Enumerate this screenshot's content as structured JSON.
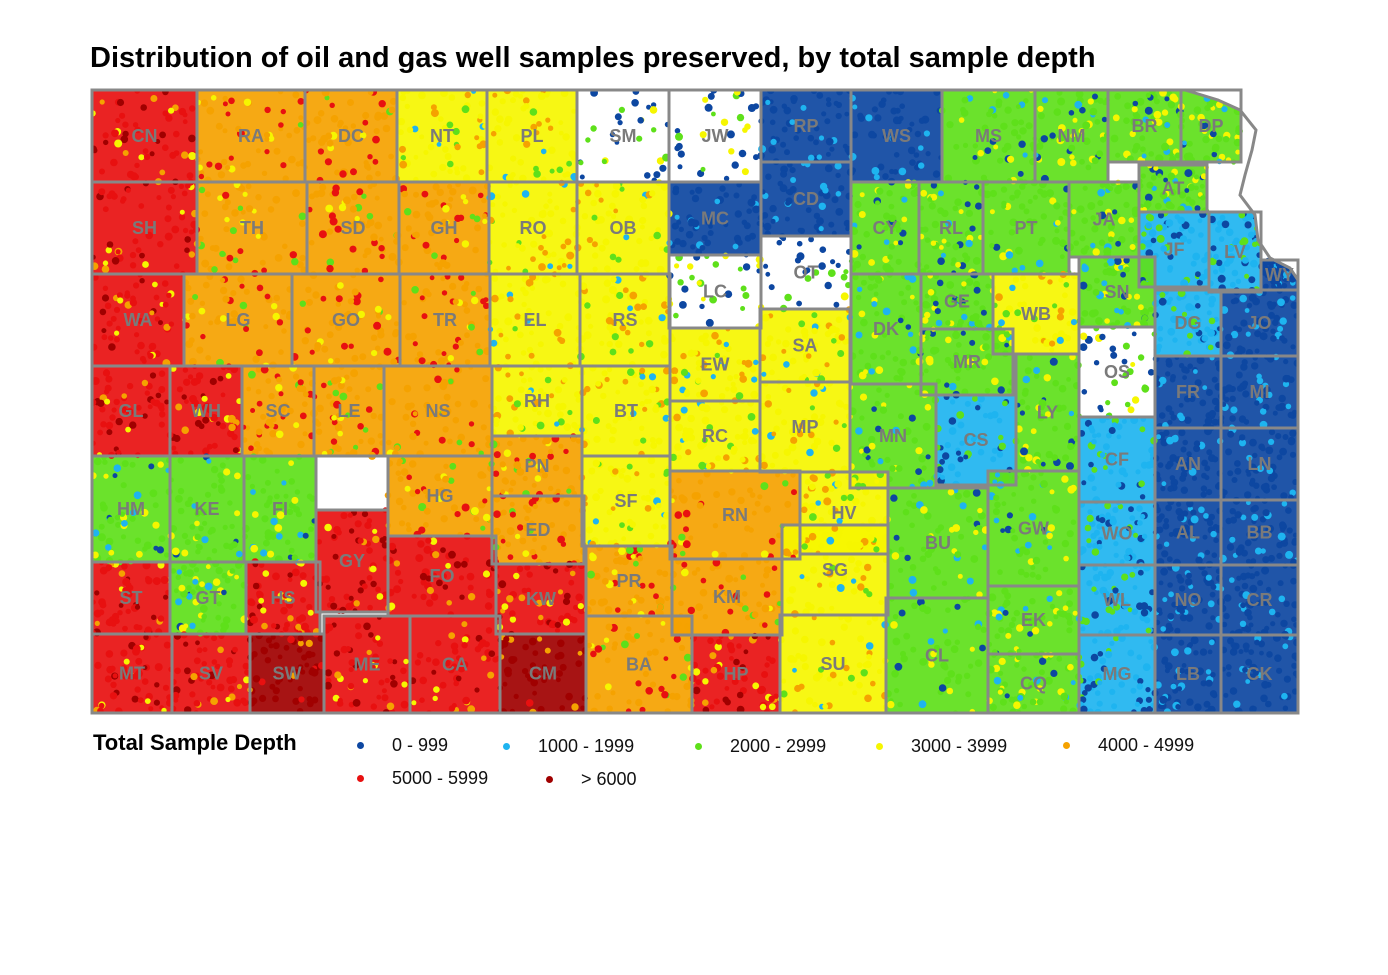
{
  "title": "Distribution of oil and gas well samples preserved, by total sample depth",
  "legend": {
    "title": "Total Sample Depth",
    "items": [
      {
        "label": "0 - 999",
        "color": "#0d47a1"
      },
      {
        "label": "1000 - 1999",
        "color": "#1eb4f0"
      },
      {
        "label": "2000 - 2999",
        "color": "#5ee01a"
      },
      {
        "label": "3000 - 3999",
        "color": "#f6f600"
      },
      {
        "label": "4000 - 4999",
        "color": "#f5a200"
      },
      {
        "label": "5000 - 5999",
        "color": "#e81010"
      },
      {
        "label": "> 6000",
        "color": "#a00000"
      }
    ]
  },
  "county_border_color": "#888888",
  "counties": [
    {
      "code": "CN",
      "depth": 6
    },
    {
      "code": "RA",
      "depth": 5
    },
    {
      "code": "DC",
      "depth": 5
    },
    {
      "code": "NT",
      "depth": 4
    },
    {
      "code": "PL",
      "depth": 4
    },
    {
      "code": "SM",
      "depth": 0
    },
    {
      "code": "JW",
      "depth": 0
    },
    {
      "code": "RP",
      "depth": 1
    },
    {
      "code": "WS",
      "depth": 1
    },
    {
      "code": "MS",
      "depth": 3
    },
    {
      "code": "NM",
      "depth": 3
    },
    {
      "code": "BR",
      "depth": 3
    },
    {
      "code": "DP",
      "depth": 3
    },
    {
      "code": "SH",
      "depth": 6
    },
    {
      "code": "TH",
      "depth": 5
    },
    {
      "code": "SD",
      "depth": 5
    },
    {
      "code": "GH",
      "depth": 5
    },
    {
      "code": "RO",
      "depth": 4
    },
    {
      "code": "OB",
      "depth": 4
    },
    {
      "code": "MC",
      "depth": 1
    },
    {
      "code": "CD",
      "depth": 1
    },
    {
      "code": "CY",
      "depth": 3
    },
    {
      "code": "RL",
      "depth": 3
    },
    {
      "code": "PT",
      "depth": 3
    },
    {
      "code": "JA",
      "depth": 3
    },
    {
      "code": "AT",
      "depth": 3
    },
    {
      "code": "JF",
      "depth": 2
    },
    {
      "code": "LV",
      "depth": 2
    },
    {
      "code": "WY",
      "depth": 1
    },
    {
      "code": "WA",
      "depth": 6
    },
    {
      "code": "LG",
      "depth": 5
    },
    {
      "code": "GO",
      "depth": 5
    },
    {
      "code": "TR",
      "depth": 5
    },
    {
      "code": "EL",
      "depth": 4
    },
    {
      "code": "RS",
      "depth": 4
    },
    {
      "code": "LC",
      "depth": 0
    },
    {
      "code": "OT",
      "depth": 0
    },
    {
      "code": "DK",
      "depth": 3
    },
    {
      "code": "GE",
      "depth": 3
    },
    {
      "code": "WB",
      "depth": 4
    },
    {
      "code": "SN",
      "depth": 3
    },
    {
      "code": "DG",
      "depth": 2
    },
    {
      "code": "JO",
      "depth": 1
    },
    {
      "code": "GL",
      "depth": 6
    },
    {
      "code": "WH",
      "depth": 6
    },
    {
      "code": "SC",
      "depth": 5
    },
    {
      "code": "LE",
      "depth": 5
    },
    {
      "code": "NS",
      "depth": 5
    },
    {
      "code": "RH",
      "depth": 4
    },
    {
      "code": "BT",
      "depth": 4
    },
    {
      "code": "EW",
      "depth": 4
    },
    {
      "code": "SA",
      "depth": 4
    },
    {
      "code": "MR",
      "depth": 3
    },
    {
      "code": "OS",
      "depth": 0
    },
    {
      "code": "FR",
      "depth": 1
    },
    {
      "code": "MI",
      "depth": 1
    },
    {
      "code": "RC",
      "depth": 4
    },
    {
      "code": "MP",
      "depth": 4
    },
    {
      "code": "MN",
      "depth": 3
    },
    {
      "code": "CS",
      "depth": 2
    },
    {
      "code": "LY",
      "depth": 3
    },
    {
      "code": "CF",
      "depth": 2
    },
    {
      "code": "AN",
      "depth": 1
    },
    {
      "code": "LN",
      "depth": 1
    },
    {
      "code": "HM",
      "depth": 3
    },
    {
      "code": "KE",
      "depth": 3
    },
    {
      "code": "FI",
      "depth": 3
    },
    {
      "code": "HG",
      "depth": 5
    },
    {
      "code": "PN",
      "depth": 5
    },
    {
      "code": "SF",
      "depth": 4
    },
    {
      "code": "RN",
      "depth": 5
    },
    {
      "code": "HV",
      "depth": 4
    },
    {
      "code": "BU",
      "depth": 3
    },
    {
      "code": "GW",
      "depth": 3
    },
    {
      "code": "WO",
      "depth": 2
    },
    {
      "code": "AL",
      "depth": 1
    },
    {
      "code": "BB",
      "depth": 1
    },
    {
      "code": "GY",
      "depth": 6
    },
    {
      "code": "ED",
      "depth": 5
    },
    {
      "code": "FO",
      "depth": 6
    },
    {
      "code": "ST",
      "depth": 6
    },
    {
      "code": "GT",
      "depth": 3
    },
    {
      "code": "HS",
      "depth": 6
    },
    {
      "code": "KW",
      "depth": 6
    },
    {
      "code": "PR",
      "depth": 5
    },
    {
      "code": "KM",
      "depth": 5
    },
    {
      "code": "SG",
      "depth": 4
    },
    {
      "code": "EK",
      "depth": 3
    },
    {
      "code": "WL",
      "depth": 2
    },
    {
      "code": "NO",
      "depth": 1
    },
    {
      "code": "CR",
      "depth": 1
    },
    {
      "code": "MT",
      "depth": 6
    },
    {
      "code": "SV",
      "depth": 6
    },
    {
      "code": "SW",
      "depth": 7
    },
    {
      "code": "ME",
      "depth": 6
    },
    {
      "code": "CA",
      "depth": 6
    },
    {
      "code": "CM",
      "depth": 7
    },
    {
      "code": "BA",
      "depth": 5
    },
    {
      "code": "HP",
      "depth": 6
    },
    {
      "code": "SU",
      "depth": 4
    },
    {
      "code": "CL",
      "depth": 3
    },
    {
      "code": "CQ",
      "depth": 3
    },
    {
      "code": "MG",
      "depth": 2
    },
    {
      "code": "LB",
      "depth": 1
    },
    {
      "code": "CK",
      "depth": 1
    }
  ]
}
